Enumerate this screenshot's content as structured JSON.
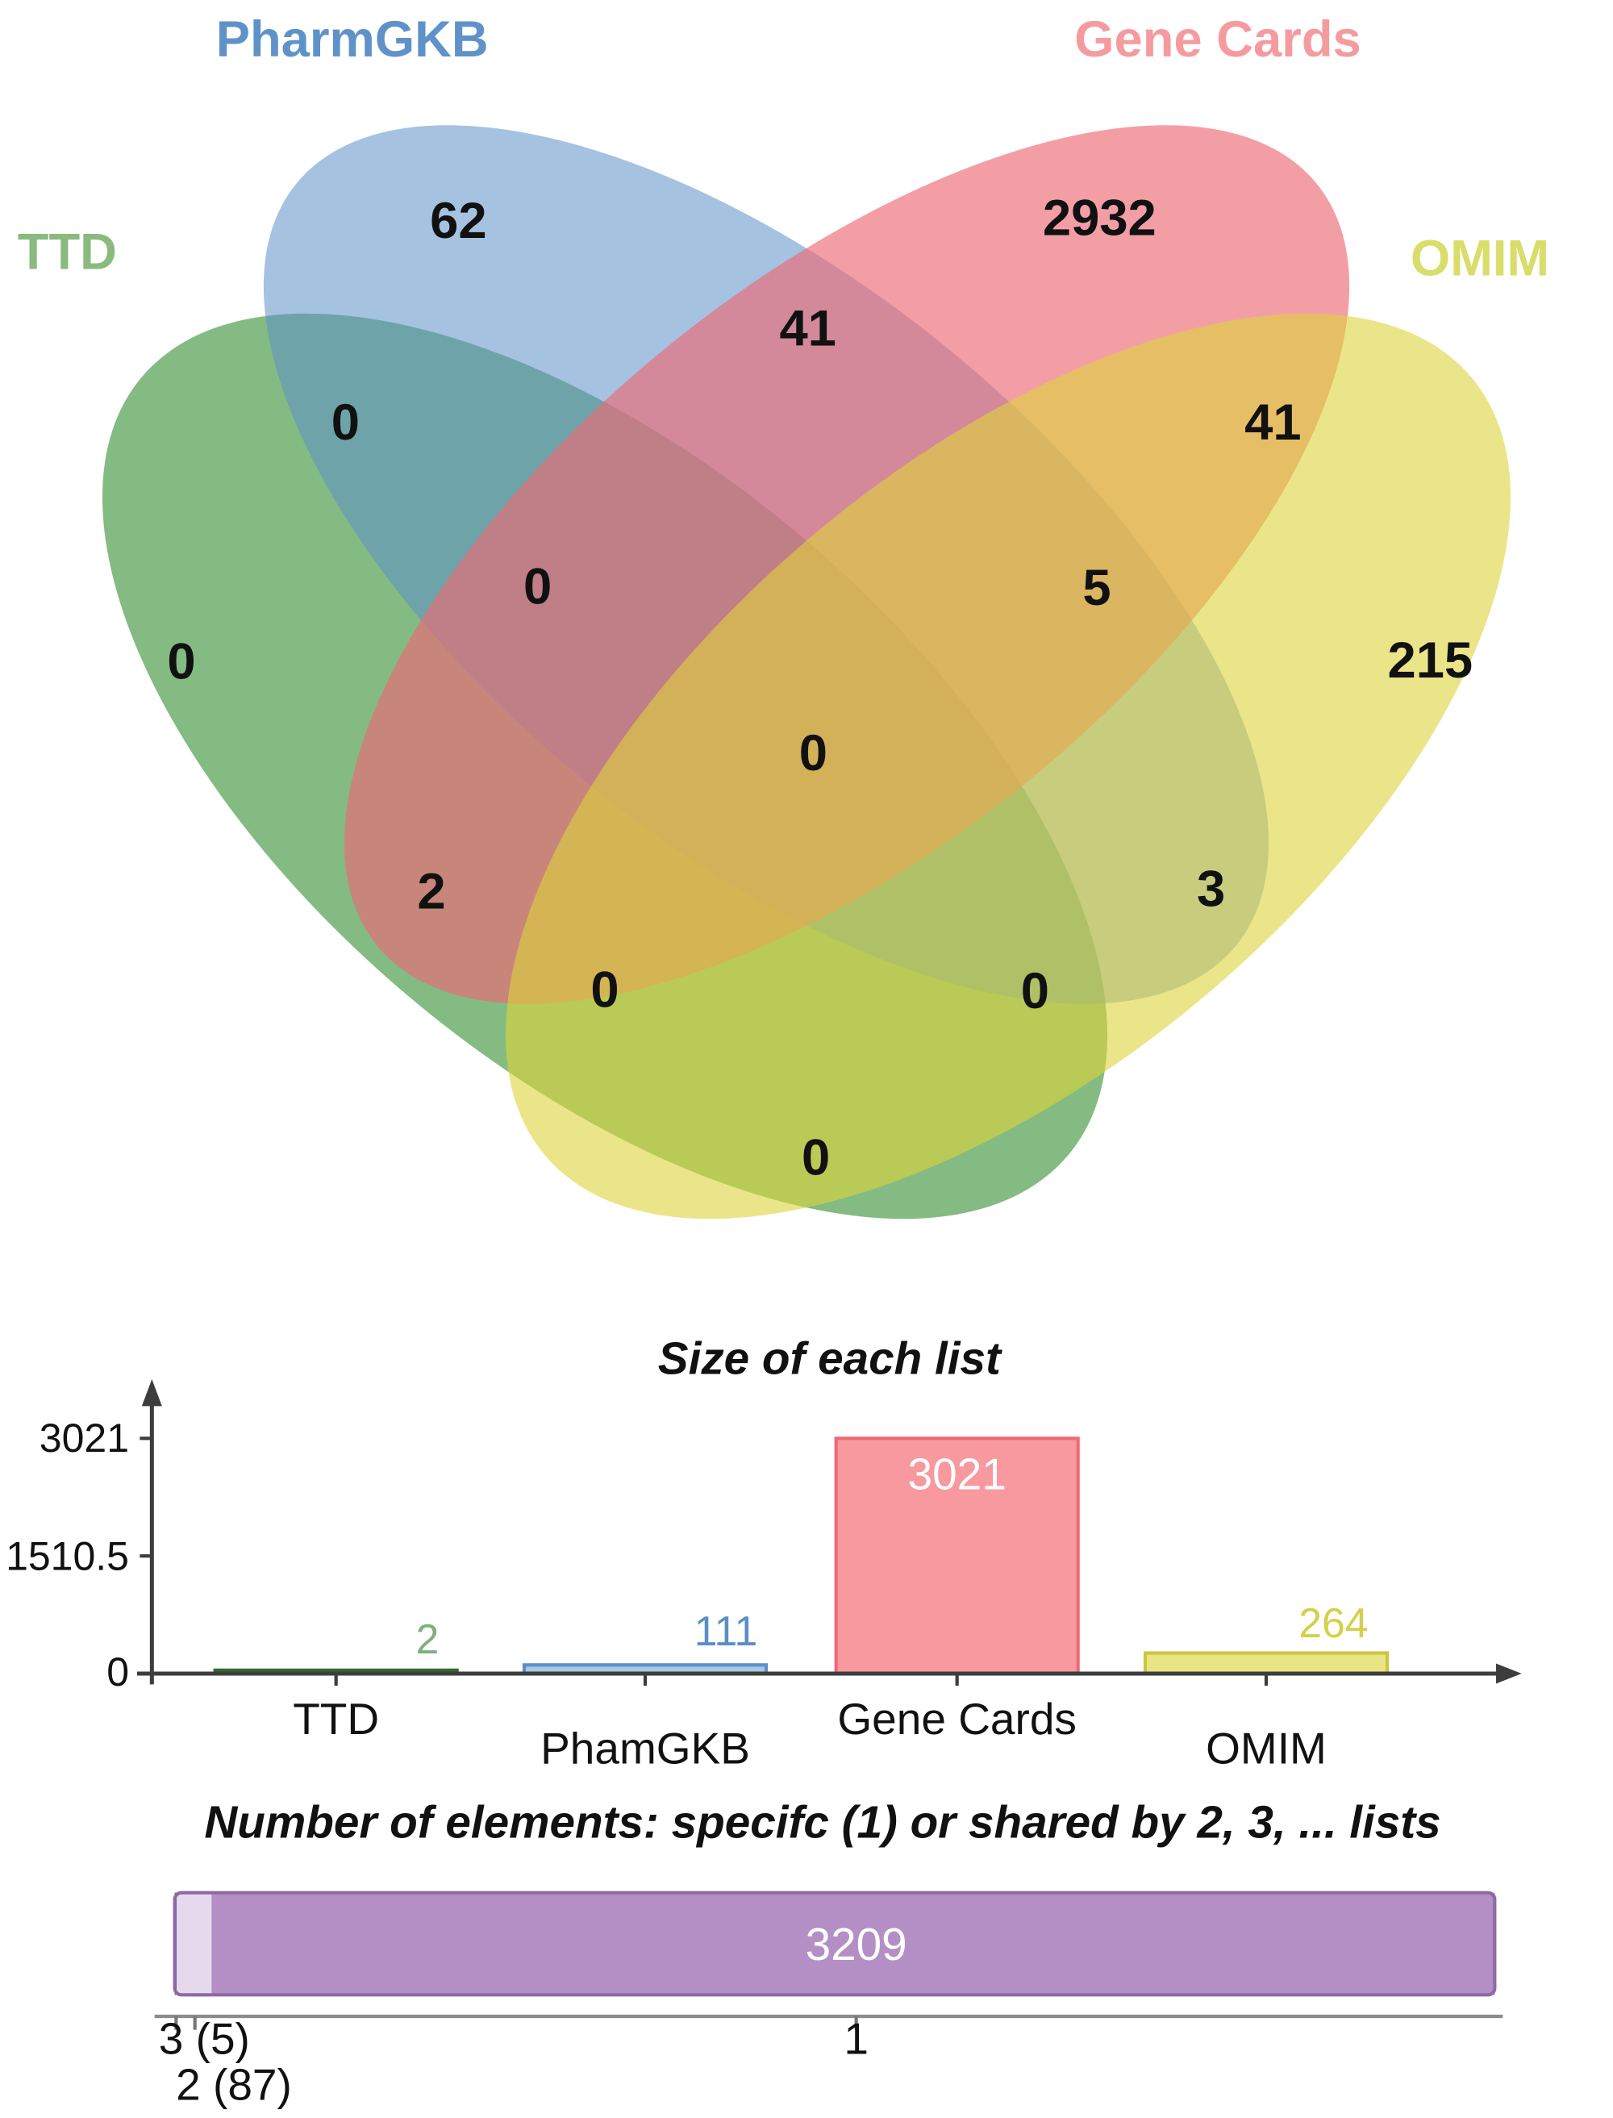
{
  "figure": {
    "background": "#ffffff"
  },
  "chart_data": [
    {
      "type": "venn",
      "sets": [
        "TTD",
        "PharmGKB",
        "Gene Cards",
        "OMIM"
      ],
      "set_colors": {
        "ttd": "#4f9e4f",
        "pharmgkb": "#5b8fc9",
        "genecards": "#ec6a74",
        "omim": "#ded43a"
      },
      "set_label_colors": {
        "ttd": "#8aba7e",
        "pharmgkb": "#5f92c8",
        "genecards": "#f59ba0",
        "omim": "#d9dd6a"
      },
      "regions": {
        "ttd_only": "0",
        "pharmgkb_only": "62",
        "genecards_only": "2932",
        "omim_only": "215",
        "ttd_pharmgkb": "0",
        "pharmgkb_genecards": "41",
        "genecards_omim": "41",
        "ttd_genecards": "2",
        "pharmgkb_omim": "3",
        "ttd_omim": "0",
        "ttd_pharmgkb_genecards": "0",
        "pharmgkb_genecards_omim": "5",
        "ttd_genecards_omim": "0",
        "ttd_pharmgkb_omim": "0",
        "all_four": "0"
      }
    },
    {
      "type": "bar",
      "title": "Size of each list",
      "categories": [
        "TTD",
        "PhamGKB",
        "Gene Cards",
        "OMIM"
      ],
      "values": [
        2,
        111,
        3021,
        264
      ],
      "value_labels": [
        "2",
        "111",
        "3021",
        "264"
      ],
      "value_label_colors": [
        "#7fb07a",
        "#5b8ec4",
        "#ffffff",
        "#d6cf4a"
      ],
      "bar_colors": [
        {
          "fill": "#4a8c4a",
          "stroke": "#2f6b2f"
        },
        {
          "fill": "#aac7e6",
          "stroke": "#5b8fc9"
        },
        {
          "fill": "#f899a0",
          "stroke": "#ee6a74"
        },
        {
          "fill": "#eae584",
          "stroke": "#c9c73e"
        }
      ],
      "y_ticks": [
        "3021",
        "1510.5",
        "0"
      ],
      "ylim": [
        0,
        3021
      ],
      "grid": false,
      "legend": false
    },
    {
      "type": "stacked_bar",
      "title": "Number of elements: specifc (1) or shared by 2, 3, ... lists",
      "segments": [
        {
          "shared_by": "3",
          "count": 5,
          "tick_label": "3 (5)"
        },
        {
          "shared_by": "2",
          "count": 87,
          "tick_label": "2 (87)"
        },
        {
          "shared_by": "1",
          "count": 3209,
          "tick_label": "1",
          "bar_label": "3209"
        }
      ],
      "segment_colors": [
        "#6a4d82",
        "#e6d9ee",
        "#b48fc6"
      ],
      "border_color": "#8d6aa5",
      "bar_label_color": "#ffffff"
    }
  ]
}
